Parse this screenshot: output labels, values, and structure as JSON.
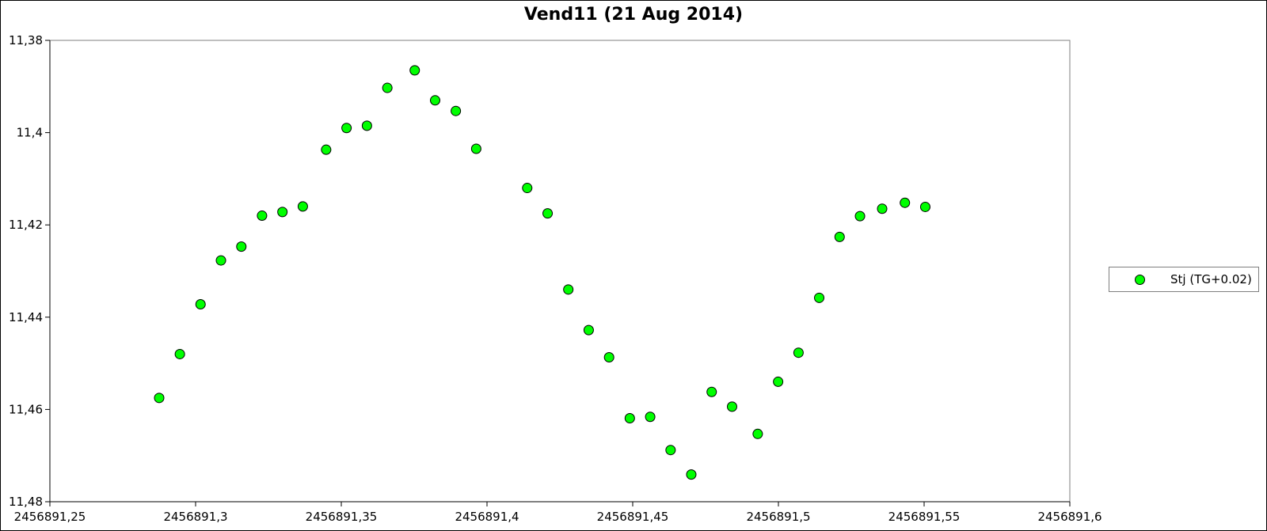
{
  "chart_data": {
    "type": "scatter",
    "title": "Vend11 (21 Aug 2014)",
    "xlabel": "",
    "ylabel": "",
    "xlim": [
      2456891.25,
      2456891.6
    ],
    "ylim": [
      11.38,
      11.48
    ],
    "y_inverted": true,
    "x_ticks": [
      "2456891,25",
      "2456891,3",
      "2456891,35",
      "2456891,4",
      "2456891,45",
      "2456891,5",
      "2456891,55",
      "2456891,6"
    ],
    "x_tick_values": [
      2456891.25,
      2456891.3,
      2456891.35,
      2456891.4,
      2456891.45,
      2456891.5,
      2456891.55,
      2456891.6
    ],
    "y_ticks": [
      "11,38",
      "11,4",
      "11,42",
      "11,44",
      "11,46",
      "11,48"
    ],
    "y_tick_values": [
      11.38,
      11.4,
      11.42,
      11.44,
      11.46,
      11.48
    ],
    "grid": false,
    "legend_position": "right",
    "series": [
      {
        "name": "Stj (TG+0.02)",
        "color": "#00ff00",
        "marker": "circle",
        "points": [
          [
            2456891.2875,
            11.4575
          ],
          [
            2456891.2946,
            11.448
          ],
          [
            2456891.3017,
            11.4372
          ],
          [
            2456891.3087,
            11.4277
          ],
          [
            2456891.3157,
            11.4247
          ],
          [
            2456891.3228,
            11.418
          ],
          [
            2456891.3298,
            11.4172
          ],
          [
            2456891.3368,
            11.416
          ],
          [
            2456891.3448,
            11.4037
          ],
          [
            2456891.3518,
            11.399
          ],
          [
            2456891.3588,
            11.3985
          ],
          [
            2456891.3658,
            11.3903
          ],
          [
            2456891.3752,
            11.3865
          ],
          [
            2456891.3822,
            11.393
          ],
          [
            2456891.3893,
            11.3953
          ],
          [
            2456891.3963,
            11.4035
          ],
          [
            2456891.4138,
            11.412
          ],
          [
            2456891.4208,
            11.4175
          ],
          [
            2456891.4279,
            11.434
          ],
          [
            2456891.4349,
            11.4428
          ],
          [
            2456891.4419,
            11.4487
          ],
          [
            2456891.449,
            11.4619
          ],
          [
            2456891.456,
            11.4616
          ],
          [
            2456891.463,
            11.4688
          ],
          [
            2456891.4701,
            11.4741
          ],
          [
            2456891.4771,
            11.4562
          ],
          [
            2456891.4841,
            11.4594
          ],
          [
            2456891.4929,
            11.4653
          ],
          [
            2456891.4999,
            11.454
          ],
          [
            2456891.5069,
            11.4477
          ],
          [
            2456891.514,
            11.4358
          ],
          [
            2456891.521,
            11.4226
          ],
          [
            2456891.528,
            11.4181
          ],
          [
            2456891.5356,
            11.4165
          ],
          [
            2456891.5434,
            11.4152
          ],
          [
            2456891.5504,
            11.4161
          ]
        ]
      }
    ]
  }
}
